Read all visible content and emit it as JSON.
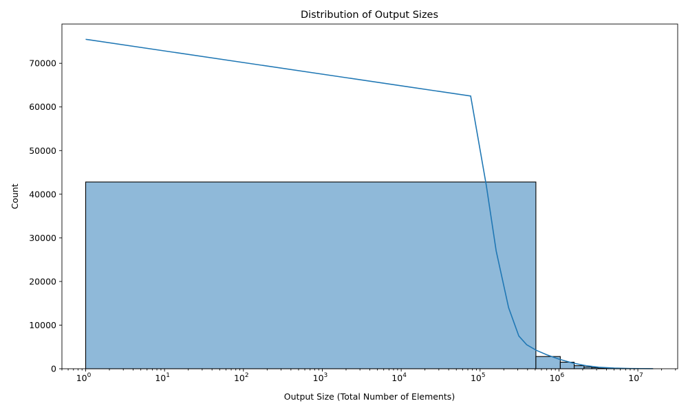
{
  "chart_data": {
    "type": "bar",
    "title": "Distribution of Output Sizes",
    "xlabel": "Output Size (Total Number of Elements)",
    "ylabel": "Count",
    "x_scale": "log",
    "xlim": [
      0.5,
      32000000
    ],
    "ylim": [
      0,
      79000
    ],
    "grid": false,
    "x_ticks": [
      {
        "value": 1,
        "base": "10",
        "exp": "0"
      },
      {
        "value": 10,
        "base": "10",
        "exp": "1"
      },
      {
        "value": 100,
        "base": "10",
        "exp": "2"
      },
      {
        "value": 1000,
        "base": "10",
        "exp": "3"
      },
      {
        "value": 10000,
        "base": "10",
        "exp": "4"
      },
      {
        "value": 100000,
        "base": "10",
        "exp": "5"
      },
      {
        "value": 1000000,
        "base": "10",
        "exp": "6"
      },
      {
        "value": 10000000,
        "base": "10",
        "exp": "7"
      }
    ],
    "y_ticks": [
      0,
      10000,
      20000,
      30000,
      40000,
      50000,
      60000,
      70000
    ],
    "bins": [
      {
        "x0": 1,
        "x1": 510000,
        "count": 42800
      },
      {
        "x0": 510000,
        "x1": 1040000,
        "count": 2800
      },
      {
        "x0": 1040000,
        "x1": 1560000,
        "count": 1500
      },
      {
        "x0": 1560000,
        "x1": 2080000,
        "count": 700
      },
      {
        "x0": 2080000,
        "x1": 2600000,
        "count": 400
      },
      {
        "x0": 2600000,
        "x1": 3120000,
        "count": 250
      },
      {
        "x0": 3120000,
        "x1": 4200000,
        "count": 120
      },
      {
        "x0": 4200000,
        "x1": 6000000,
        "count": 60
      },
      {
        "x0": 6000000,
        "x1": 9000000,
        "count": 30
      },
      {
        "x0": 9000000,
        "x1": 15500000,
        "count": 15
      }
    ],
    "series": [
      {
        "type": "line",
        "x": [
          1,
          76000,
          120000,
          160000,
          230000,
          310000,
          390000,
          520000,
          700000,
          1000000,
          1500000,
          2200000,
          3200000,
          5000000,
          8000000,
          15500000
        ],
        "y": [
          75500,
          62500,
          42000,
          27000,
          14000,
          7500,
          5500,
          4200,
          3200,
          2200,
          1300,
          700,
          350,
          150,
          60,
          20
        ]
      }
    ]
  }
}
